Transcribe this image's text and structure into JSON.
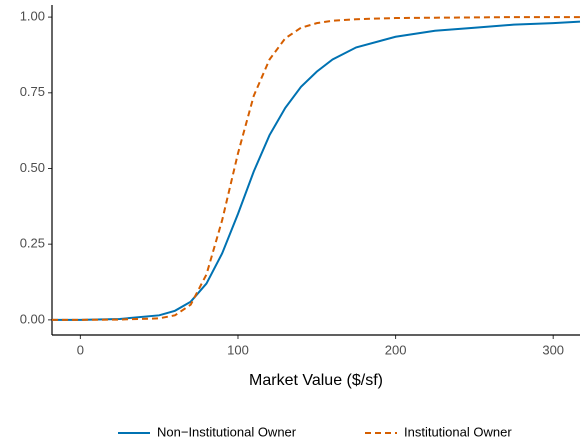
{
  "chart_data": {
    "type": "line",
    "x_label": "Market Value ($/sf)",
    "x": [
      -18,
      0,
      25,
      50,
      60,
      70,
      80,
      90,
      100,
      110,
      120,
      130,
      140,
      150,
      160,
      175,
      200,
      225,
      250,
      275,
      300,
      317
    ],
    "series": [
      {
        "name": "Non−Institutional Owner",
        "color": "#0072B2",
        "dash": "solid",
        "values": [
          0,
          0,
          0.003,
          0.015,
          0.03,
          0.06,
          0.12,
          0.22,
          0.35,
          0.49,
          0.61,
          0.7,
          0.77,
          0.82,
          0.86,
          0.9,
          0.935,
          0.955,
          0.965,
          0.975,
          0.98,
          0.985
        ]
      },
      {
        "name": "Institutional Owner",
        "color": "#D55E00",
        "dash": "dashed",
        "values": [
          0,
          0,
          0.001,
          0.005,
          0.015,
          0.05,
          0.15,
          0.33,
          0.55,
          0.74,
          0.86,
          0.93,
          0.965,
          0.98,
          0.988,
          0.993,
          0.997,
          0.998,
          0.999,
          1,
          1,
          1
        ]
      }
    ],
    "xlim": [
      -18,
      317
    ],
    "ylim": [
      -0.05,
      1.04
    ],
    "xticks": [
      0,
      100,
      200,
      300
    ],
    "yticks": [
      {
        "value": 0,
        "label": "0.00"
      },
      {
        "value": 0.25,
        "label": "0.25"
      },
      {
        "value": 0.5,
        "label": "0.50"
      },
      {
        "value": 0.75,
        "label": "0.75"
      },
      {
        "value": 1,
        "label": "1.00"
      }
    ],
    "legend": "bottom"
  }
}
